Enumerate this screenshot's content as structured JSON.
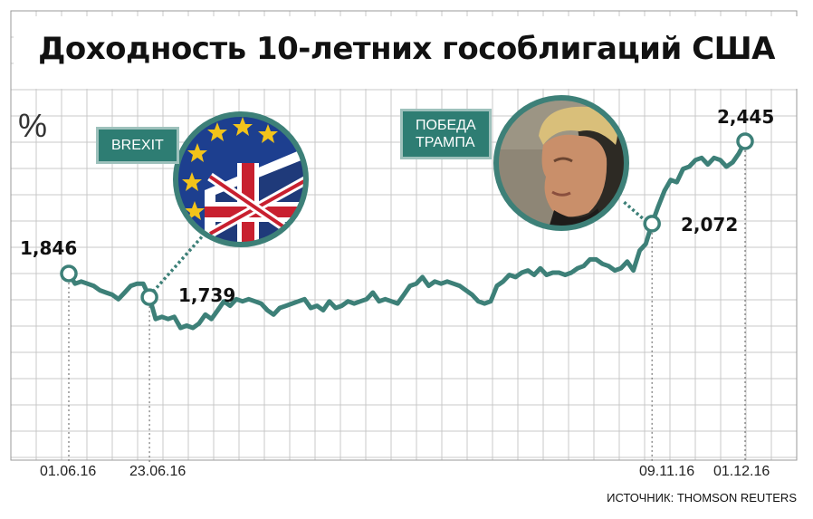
{
  "title": "Доходность 10-летних гособлигаций США",
  "unit_label": "%",
  "source": "ИСТОЧНИК: THOMSON REUTERS",
  "annotations": {
    "brexit": "BREXIT",
    "trump_line1": "ПОБЕДА",
    "trump_line2": "ТРАМПА"
  },
  "colors": {
    "line": "#3d8078",
    "grid": "#c8c8c8",
    "badge": "#2e7d73",
    "badge_border": "#9ec1bc"
  },
  "chart_data": {
    "type": "line",
    "x_tick_labels": [
      "01.06.16",
      "23.06.16",
      "09.11.16",
      "01.12.16"
    ],
    "grid": true,
    "highlighted_points": [
      {
        "x": "01.06.16",
        "y": 1.846,
        "label": "1,846"
      },
      {
        "x": "23.06.16",
        "y": 1.739,
        "label": "1,739"
      },
      {
        "x": "09.11.16",
        "y": 2.072,
        "label": "2,072"
      },
      {
        "x": "01.12.16",
        "y": 2.445,
        "label": "2,445"
      }
    ],
    "series": [
      {
        "values": [
          1.846,
          1.8,
          1.81,
          1.8,
          1.79,
          1.77,
          1.76,
          1.75,
          1.73,
          1.76,
          1.79,
          1.8,
          1.8,
          1.739,
          1.64,
          1.65,
          1.64,
          1.65,
          1.6,
          1.61,
          1.6,
          1.62,
          1.66,
          1.64,
          1.68,
          1.72,
          1.7,
          1.73,
          1.72,
          1.73,
          1.72,
          1.71,
          1.68,
          1.66,
          1.69,
          1.7,
          1.71,
          1.72,
          1.73,
          1.69,
          1.7,
          1.68,
          1.72,
          1.69,
          1.7,
          1.72,
          1.71,
          1.72,
          1.73,
          1.76,
          1.72,
          1.73,
          1.72,
          1.71,
          1.75,
          1.79,
          1.8,
          1.83,
          1.79,
          1.81,
          1.8,
          1.81,
          1.8,
          1.79,
          1.77,
          1.75,
          1.72,
          1.71,
          1.72,
          1.79,
          1.81,
          1.84,
          1.83,
          1.85,
          1.86,
          1.84,
          1.87,
          1.84,
          1.85,
          1.85,
          1.84,
          1.85,
          1.87,
          1.88,
          1.91,
          1.91,
          1.89,
          1.88,
          1.86,
          1.87,
          1.9,
          1.86,
          1.95,
          1.98,
          2.072,
          2.15,
          2.22,
          2.27,
          2.26,
          2.32,
          2.33,
          2.36,
          2.37,
          2.34,
          2.37,
          2.36,
          2.33,
          2.35,
          2.39,
          2.445
        ]
      }
    ]
  }
}
